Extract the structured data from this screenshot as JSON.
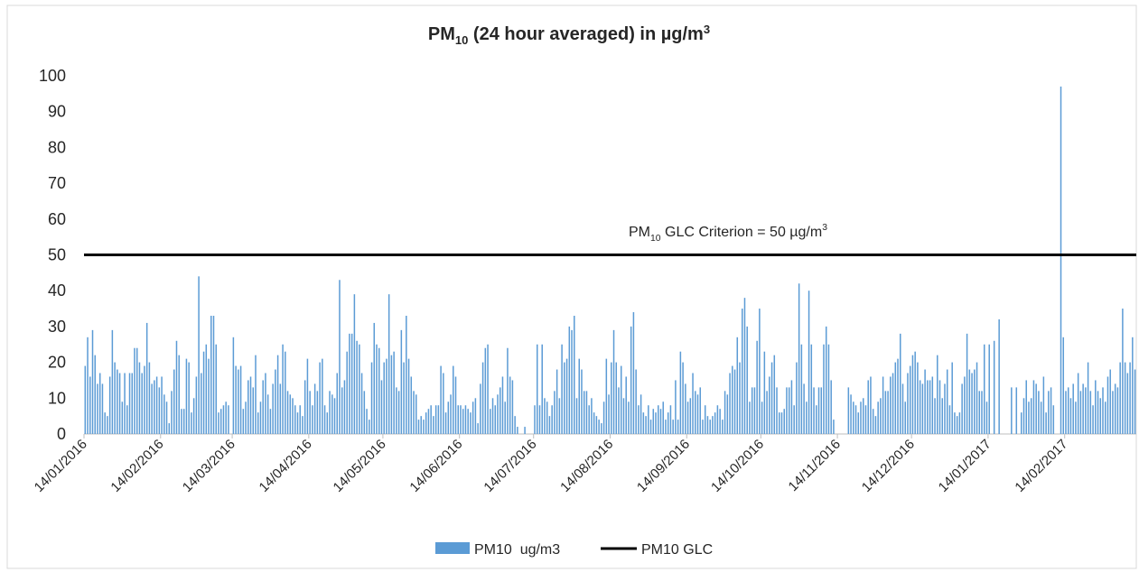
{
  "chart_data": {
    "type": "bar",
    "title_parts": [
      "PM",
      "10",
      " (24 hour averaged) in µg/m",
      "3"
    ],
    "categories": [
      "14/01/2016",
      null,
      null,
      null,
      null,
      null,
      null,
      null,
      null,
      null,
      null,
      null,
      null,
      null,
      null,
      null,
      null,
      null,
      null,
      null,
      null,
      null,
      null,
      null,
      null,
      null,
      null,
      null,
      null,
      null,
      null,
      "14/02/2016",
      null,
      null,
      null,
      null,
      null,
      null,
      null,
      null,
      null,
      null,
      null,
      null,
      null,
      null,
      null,
      null,
      null,
      null,
      null,
      null,
      null,
      null,
      null,
      null,
      null,
      null,
      null,
      null,
      "14/03/2016",
      null,
      null,
      null,
      null,
      null,
      null,
      null,
      null,
      null,
      null,
      null,
      null,
      null,
      null,
      null,
      null,
      null,
      null,
      null,
      null,
      null,
      null,
      null,
      null,
      null,
      null,
      null,
      null,
      null,
      null,
      "14/04/2016",
      null,
      null,
      null,
      null,
      null,
      null,
      null,
      null,
      null,
      null,
      null,
      null,
      null,
      null,
      null,
      null,
      null,
      null,
      null,
      null,
      null,
      null,
      null,
      null,
      null,
      null,
      null,
      null,
      null,
      "14/05/2016",
      null,
      null,
      null,
      null,
      null,
      null,
      null,
      null,
      null,
      null,
      null,
      null,
      null,
      null,
      null,
      null,
      null,
      null,
      null,
      null,
      null,
      null,
      null,
      null,
      null,
      null,
      null,
      null,
      null,
      null,
      "14/06/2016",
      null,
      null,
      null,
      null,
      null,
      null,
      null,
      null,
      null,
      null,
      null,
      null,
      null,
      null,
      null,
      null,
      null,
      null,
      null,
      null,
      null,
      null,
      null,
      null,
      null,
      null,
      null,
      null,
      null,
      "14/07/2016",
      null,
      null,
      null,
      null,
      null,
      null,
      null,
      null,
      null,
      null,
      null,
      null,
      null,
      null,
      null,
      null,
      null,
      null,
      null,
      null,
      null,
      null,
      null,
      null,
      null,
      null,
      null,
      null,
      null,
      null,
      "14/08/2016",
      null,
      null,
      null,
      null,
      null,
      null,
      null,
      null,
      null,
      null,
      null,
      null,
      null,
      null,
      null,
      null,
      null,
      null,
      null,
      null,
      null,
      null,
      null,
      null,
      null,
      null,
      null,
      null,
      null,
      null,
      "14/09/2016",
      null,
      null,
      null,
      null,
      null,
      null,
      null,
      null,
      null,
      null,
      null,
      null,
      null,
      null,
      null,
      null,
      null,
      null,
      null,
      null,
      null,
      null,
      null,
      null,
      null,
      null,
      null,
      null,
      null,
      "14/10/2016",
      null,
      null,
      null,
      null,
      null,
      null,
      null,
      null,
      null,
      null,
      null,
      null,
      null,
      null,
      null,
      null,
      null,
      null,
      null,
      null,
      null,
      null,
      null,
      null,
      null,
      null,
      null,
      null,
      null,
      null,
      "14/11/2016",
      null,
      null,
      null,
      null,
      null,
      null,
      null,
      null,
      null,
      null,
      null,
      null,
      null,
      null,
      null,
      null,
      null,
      null,
      null,
      null,
      null,
      null,
      null,
      null,
      null,
      null,
      null,
      null,
      null,
      "14/12/2016",
      null,
      null,
      null,
      null,
      null,
      null,
      null,
      null,
      null,
      null,
      null,
      null,
      null,
      null,
      null,
      null,
      null,
      null,
      null,
      null,
      null,
      null,
      null,
      null,
      null,
      null,
      null,
      null,
      null,
      null,
      "14/01/2017",
      null,
      null,
      null,
      null,
      null,
      null,
      null,
      null,
      null,
      null,
      null,
      null,
      null,
      null,
      null,
      null,
      null,
      null,
      null,
      null,
      null,
      null,
      null,
      null,
      null,
      null,
      null,
      null,
      null,
      null,
      "14/02/2017",
      null,
      null,
      null,
      null,
      null,
      null,
      null,
      null,
      null,
      null,
      null,
      null,
      null,
      null,
      null,
      null,
      null,
      null,
      null,
      null,
      null,
      null,
      null,
      null,
      null,
      null,
      null,
      null
    ],
    "series": [
      {
        "name": "PM10  ug/m3",
        "color": "#5b9bd5",
        "values": [
          19,
          27,
          16,
          29,
          22,
          14,
          17,
          14,
          6,
          5,
          16,
          29,
          20,
          18,
          17,
          9,
          17,
          8,
          17,
          17,
          24,
          24,
          20,
          17,
          19,
          31,
          20,
          14,
          15,
          16,
          13,
          16,
          11,
          9,
          3,
          12,
          18,
          26,
          22,
          7,
          7,
          21,
          20,
          6,
          10,
          16,
          44,
          17,
          23,
          25,
          21,
          33,
          33,
          25,
          6,
          7,
          8,
          9,
          8,
          null,
          27,
          19,
          18,
          19,
          7,
          9,
          15,
          16,
          13,
          22,
          6,
          9,
          15,
          17,
          11,
          7,
          14,
          18,
          22,
          14,
          25,
          23,
          12,
          11,
          10,
          8,
          6,
          8,
          5,
          15,
          21,
          12,
          8,
          14,
          12,
          20,
          21,
          8,
          6,
          12,
          11,
          10,
          17,
          43,
          13,
          15,
          23,
          28,
          28,
          39,
          26,
          25,
          17,
          12,
          7,
          4,
          20,
          31,
          25,
          24,
          15,
          20,
          21,
          39,
          22,
          23,
          13,
          12,
          29,
          20,
          33,
          21,
          16,
          12,
          11,
          4,
          5,
          4,
          6,
          7,
          8,
          5,
          8,
          8,
          19,
          17,
          6,
          9,
          11,
          19,
          16,
          8,
          8,
          7,
          8,
          7,
          6,
          9,
          10,
          3,
          14,
          20,
          24,
          25,
          7,
          10,
          8,
          11,
          13,
          16,
          9,
          24,
          16,
          15,
          5,
          2,
          null,
          null,
          2,
          null,
          null,
          null,
          8,
          25,
          8,
          25,
          10,
          9,
          5,
          8,
          12,
          18,
          10,
          25,
          20,
          21,
          30,
          29,
          33,
          10,
          21,
          18,
          12,
          12,
          8,
          10,
          6,
          5,
          4,
          3,
          9,
          21,
          11,
          20,
          29,
          20,
          13,
          19,
          10,
          16,
          9,
          30,
          34,
          18,
          8,
          11,
          6,
          5,
          8,
          4,
          7,
          6,
          8,
          7,
          9,
          4,
          6,
          8,
          4,
          15,
          4,
          23,
          20,
          14,
          9,
          10,
          17,
          12,
          11,
          13,
          4,
          8,
          5,
          4,
          5,
          6,
          8,
          7,
          4,
          12,
          11,
          17,
          19,
          18,
          27,
          20,
          35,
          38,
          30,
          9,
          13,
          13,
          26,
          35,
          9,
          23,
          12,
          16,
          20,
          22,
          13,
          6,
          6,
          7,
          13,
          13,
          15,
          8,
          20,
          42,
          25,
          14,
          9,
          40,
          25,
          13,
          8,
          13,
          13,
          25,
          30,
          25,
          15,
          4,
          null,
          null,
          null,
          null,
          null,
          13,
          11,
          9,
          8,
          6,
          9,
          10,
          8,
          15,
          16,
          7,
          5,
          9,
          10,
          16,
          12,
          12,
          16,
          17,
          20,
          21,
          28,
          14,
          9,
          17,
          19,
          22,
          23,
          20,
          15,
          14,
          18,
          15,
          15,
          16,
          10,
          22,
          15,
          10,
          14,
          18,
          8,
          20,
          6,
          5,
          6,
          14,
          16,
          28,
          18,
          17,
          18,
          20,
          12,
          12,
          25,
          9,
          25,
          null,
          26,
          null,
          32,
          null,
          null,
          null,
          null,
          13,
          null,
          13,
          null,
          6,
          10,
          15,
          9,
          10,
          15,
          14,
          12,
          9,
          16,
          6,
          12,
          13,
          8,
          null,
          null,
          97,
          27,
          12,
          13,
          10,
          14,
          9,
          17,
          12,
          14,
          13,
          20,
          12,
          8,
          15,
          12,
          10,
          13,
          9,
          16,
          18,
          12,
          14,
          13,
          20,
          35,
          20,
          17,
          20,
          27,
          18
        ]
      }
    ],
    "reference_line": {
      "name": "PM10 GLC",
      "value": 50,
      "color": "#000000",
      "annotation_parts": [
        "PM",
        "10",
        " GLC Criterion = 50 µg/m",
        "3"
      ]
    },
    "ylim": [
      0,
      100
    ],
    "yticks": [
      0,
      10,
      20,
      30,
      40,
      50,
      60,
      70,
      80,
      90,
      100
    ]
  }
}
